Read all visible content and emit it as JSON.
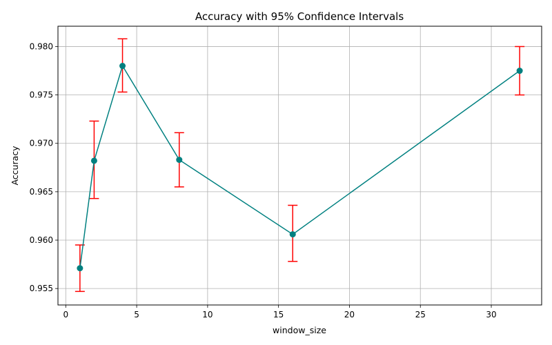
{
  "chart_data": {
    "type": "line",
    "title": "Accuracy with 95% Confidence Intervals",
    "xlabel": "window_size",
    "ylabel": "Accuracy",
    "xlim": [
      -0.55,
      33.55
    ],
    "ylim": [
      0.9533,
      0.9821
    ],
    "xticks": [
      0,
      5,
      10,
      15,
      20,
      25,
      30
    ],
    "xtick_labels": [
      "0",
      "5",
      "10",
      "15",
      "20",
      "25",
      "30"
    ],
    "yticks": [
      0.955,
      0.96,
      0.965,
      0.97,
      0.975,
      0.98
    ],
    "ytick_labels": [
      "0.955",
      "0.960",
      "0.965",
      "0.970",
      "0.975",
      "0.980"
    ],
    "grid": true,
    "series": [
      {
        "x": [
          1,
          2,
          4,
          8,
          16,
          32
        ],
        "y": [
          0.9571,
          0.9682,
          0.978,
          0.9683,
          0.9606,
          0.9775
        ],
        "err_low": [
          0.9547,
          0.9643,
          0.9753,
          0.9655,
          0.9578,
          0.975
        ],
        "err_high": [
          0.9595,
          0.9723,
          0.9808,
          0.9711,
          0.9636,
          0.98
        ]
      }
    ],
    "line_color": "#008080",
    "errorbar_color": "#ff0000",
    "grid_color": "#b0b0b0"
  }
}
